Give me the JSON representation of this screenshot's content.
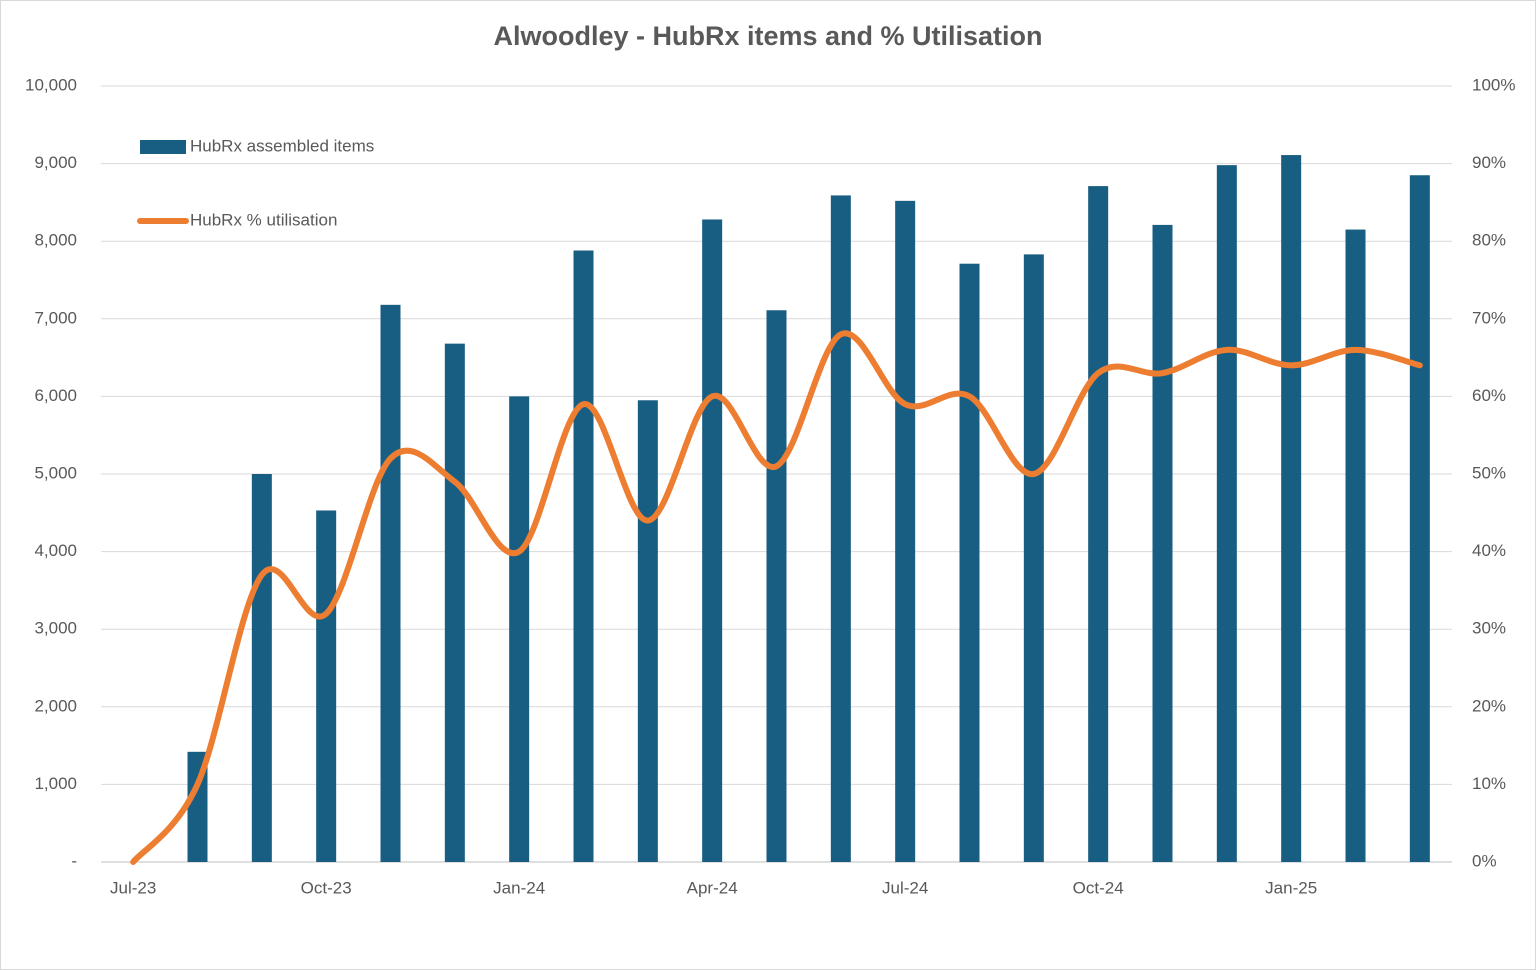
{
  "chart_data": {
    "type": "bar-line",
    "title": "Alwoodley - HubRx items and % Utilisation",
    "categories": [
      "Jul-23",
      null,
      null,
      "Oct-23",
      null,
      null,
      "Jan-24",
      null,
      null,
      "Apr-24",
      null,
      null,
      "Jul-24",
      null,
      null,
      "Oct-24",
      null,
      null,
      "Jan-25",
      null,
      null
    ],
    "series": [
      {
        "name": "HubRx assembled items",
        "type": "bar",
        "color": "#185d82",
        "values": [
          0,
          1420,
          5000,
          4530,
          7180,
          6680,
          6000,
          7880,
          5950,
          8280,
          7110,
          8590,
          8520,
          7710,
          7830,
          8710,
          8210,
          8980,
          9110,
          8150,
          8850
        ]
      },
      {
        "name": "HubRx % utilisation",
        "type": "line",
        "color": "#ed7d31",
        "axis": "y2",
        "smooth": true,
        "values": [
          0,
          10,
          37,
          32,
          52,
          49,
          40,
          59,
          44,
          60,
          51,
          68,
          59,
          60,
          50,
          63,
          63,
          66,
          64,
          66,
          64
        ]
      }
    ],
    "ylim": [
      0,
      10000
    ],
    "yticks": [
      {
        "value": 0,
        "label": "-"
      },
      {
        "value": 1000,
        "label": "1,000"
      },
      {
        "value": 2000,
        "label": "2,000"
      },
      {
        "value": 3000,
        "label": "3,000"
      },
      {
        "value": 4000,
        "label": "4,000"
      },
      {
        "value": 5000,
        "label": "5,000"
      },
      {
        "value": 6000,
        "label": "6,000"
      },
      {
        "value": 7000,
        "label": "7,000"
      },
      {
        "value": 8000,
        "label": "8,000"
      },
      {
        "value": 9000,
        "label": "9,000"
      },
      {
        "value": 10000,
        "label": "10,000"
      }
    ],
    "y2lim": [
      0,
      100
    ],
    "y2ticks": [
      {
        "value": 0,
        "label": "0%"
      },
      {
        "value": 10,
        "label": "10%"
      },
      {
        "value": 20,
        "label": "20%"
      },
      {
        "value": 30,
        "label": "30%"
      },
      {
        "value": 40,
        "label": "40%"
      },
      {
        "value": 50,
        "label": "50%"
      },
      {
        "value": 60,
        "label": "60%"
      },
      {
        "value": 70,
        "label": "70%"
      },
      {
        "value": 80,
        "label": "80%"
      },
      {
        "value": 90,
        "label": "90%"
      },
      {
        "value": 100,
        "label": "100%"
      }
    ],
    "grid": true,
    "legend": "top-left"
  }
}
